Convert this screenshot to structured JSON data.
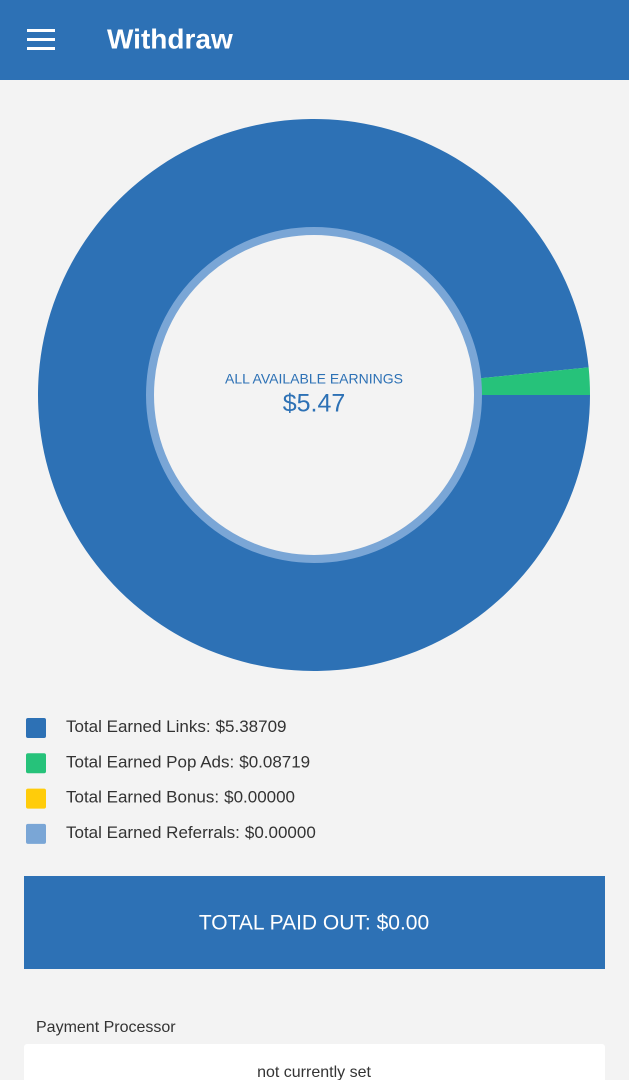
{
  "header": {
    "title": "Withdraw"
  },
  "chart_data": {
    "type": "donut",
    "center_label": "ALL AVAILABLE EARNINGS",
    "center_value": "$5.47",
    "categories": [
      "Total Earned Links:",
      "Total Earned Pop Ads:",
      "Total Earned Bonus:",
      "Total Earned Referrals:"
    ],
    "values": [
      5.38709,
      0.08719,
      0,
      0
    ],
    "value_labels": [
      "$5.38709",
      "$0.08719",
      "$0.00000",
      "$0.00000"
    ],
    "colors": [
      "#2d71b5",
      "#26c27a",
      "#ffcc0a",
      "#7aa6d6"
    ]
  },
  "total_paid": "TOTAL PAID OUT: $0.00",
  "payment": {
    "label": "Payment Processor",
    "value": "not currently set"
  }
}
